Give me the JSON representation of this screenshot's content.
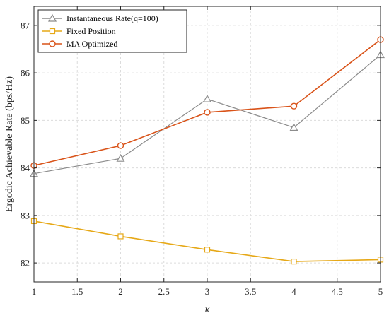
{
  "chart_data": {
    "type": "line",
    "xlabel": "κ",
    "ylabel": "Ergodic Achievable Rate (bps/Hz)",
    "xlim": [
      1,
      5
    ],
    "ylim": [
      81.6,
      87.4
    ],
    "xticks": [
      "1",
      "1.5",
      "2",
      "2.5",
      "3",
      "3.5",
      "4",
      "4.5",
      "5"
    ],
    "yticks": [
      "82",
      "83",
      "84",
      "85",
      "86",
      "87"
    ],
    "grid": true,
    "legend_position": "top-left",
    "x": [
      1,
      2,
      3,
      4,
      5
    ],
    "series": [
      {
        "name": "Instantaneous Rate(q=100)",
        "values": [
          83.88,
          84.2,
          85.45,
          84.85,
          86.38
        ],
        "color": "#8c8c8c",
        "marker": "triangle"
      },
      {
        "name": "Fixed Position",
        "values": [
          82.88,
          82.56,
          82.28,
          82.03,
          82.07
        ],
        "color": "#e6a817",
        "marker": "square"
      },
      {
        "name": "MA Optimized",
        "values": [
          84.05,
          84.47,
          85.17,
          85.3,
          86.7
        ],
        "color": "#d95319",
        "marker": "circle"
      }
    ]
  }
}
